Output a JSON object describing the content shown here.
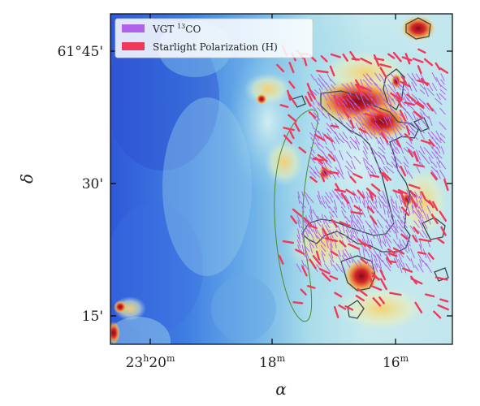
{
  "axes": {
    "xlabel": "α",
    "ylabel": "δ",
    "x_ticks": [
      {
        "hour": "23",
        "h": "h",
        "minute": "20",
        "m": "m"
      },
      {
        "hour": "",
        "h": "",
        "minute": "18",
        "m": "m"
      },
      {
        "hour": "",
        "h": "",
        "minute": "16",
        "m": "m"
      }
    ],
    "y_ticks": [
      "61°45'",
      "30'",
      "15'"
    ]
  },
  "legend": {
    "placement": "top-left",
    "items": [
      {
        "label": "VGT ",
        "sup": "13",
        "label_after": "CO",
        "color": "#b062e8"
      },
      {
        "label": "Starlight Polarization (H)",
        "color": "#f0395a"
      }
    ]
  },
  "colors": {
    "vgt_vectors": "#b062e8",
    "polarization_vectors": "#f0395a",
    "contour": "#37474f",
    "ellipse": "#4f8a2a"
  },
  "map": {
    "background_colormap": "blue-cyan-yellow-red",
    "features": [
      "dust intensity map",
      "13CO contours",
      "green ellipse region"
    ]
  }
}
